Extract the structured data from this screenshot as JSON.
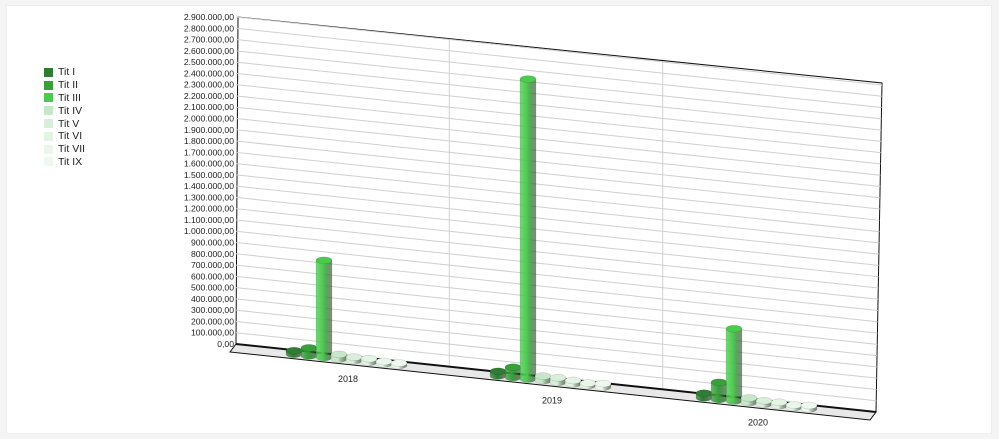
{
  "chart_data": {
    "type": "bar",
    "style": "3d-cylinder",
    "categories": [
      "2018",
      "2019",
      "2020"
    ],
    "series": [
      {
        "name": "Tit I",
        "color": "#2e7d32",
        "values": [
          30000,
          40000,
          40000
        ]
      },
      {
        "name": "Tit II",
        "color": "#37a03a",
        "values": [
          70000,
          90000,
          150000
        ]
      },
      {
        "name": "Tit III",
        "color": "#4cc94f",
        "values": [
          860000,
          2660000,
          640000
        ]
      },
      {
        "name": "Tit IV",
        "color": "#c8e6c9",
        "values": [
          40000,
          40000,
          40000
        ]
      },
      {
        "name": "Tit V",
        "color": "#d9efda",
        "values": [
          30000,
          40000,
          30000
        ]
      },
      {
        "name": "Tit VI",
        "color": "#e3f3e4",
        "values": [
          30000,
          30000,
          30000
        ]
      },
      {
        "name": "Tit VII",
        "color": "#eaf6eb",
        "values": [
          20000,
          20000,
          20000
        ]
      },
      {
        "name": "Tit IX",
        "color": "#eff8ef",
        "values": [
          20000,
          30000,
          30000
        ]
      }
    ],
    "y_ticks": [
      "0,00",
      "100.000,00",
      "200.000,00",
      "300.000,00",
      "400.000,00",
      "500.000,00",
      "600.000,00",
      "700.000,00",
      "800.000,00",
      "900.000,00",
      "1.000.000,00",
      "1.100.000,00",
      "1.200.000,00",
      "1.300.000,00",
      "1.400.000,00",
      "1.500.000,00",
      "1.600.000,00",
      "1.700.000,00",
      "1.800.000,00",
      "1.900.000,00",
      "2.000.000,00",
      "2.100.000,00",
      "2.200.000,00",
      "2.300.000,00",
      "2.400.000,00",
      "2.500.000,00",
      "2.600.000,00",
      "2.700.000,00",
      "2.800.000,00",
      "2.900.000,00"
    ],
    "ylim": [
      0,
      2900000
    ],
    "grid": true,
    "legend_position": "left"
  }
}
